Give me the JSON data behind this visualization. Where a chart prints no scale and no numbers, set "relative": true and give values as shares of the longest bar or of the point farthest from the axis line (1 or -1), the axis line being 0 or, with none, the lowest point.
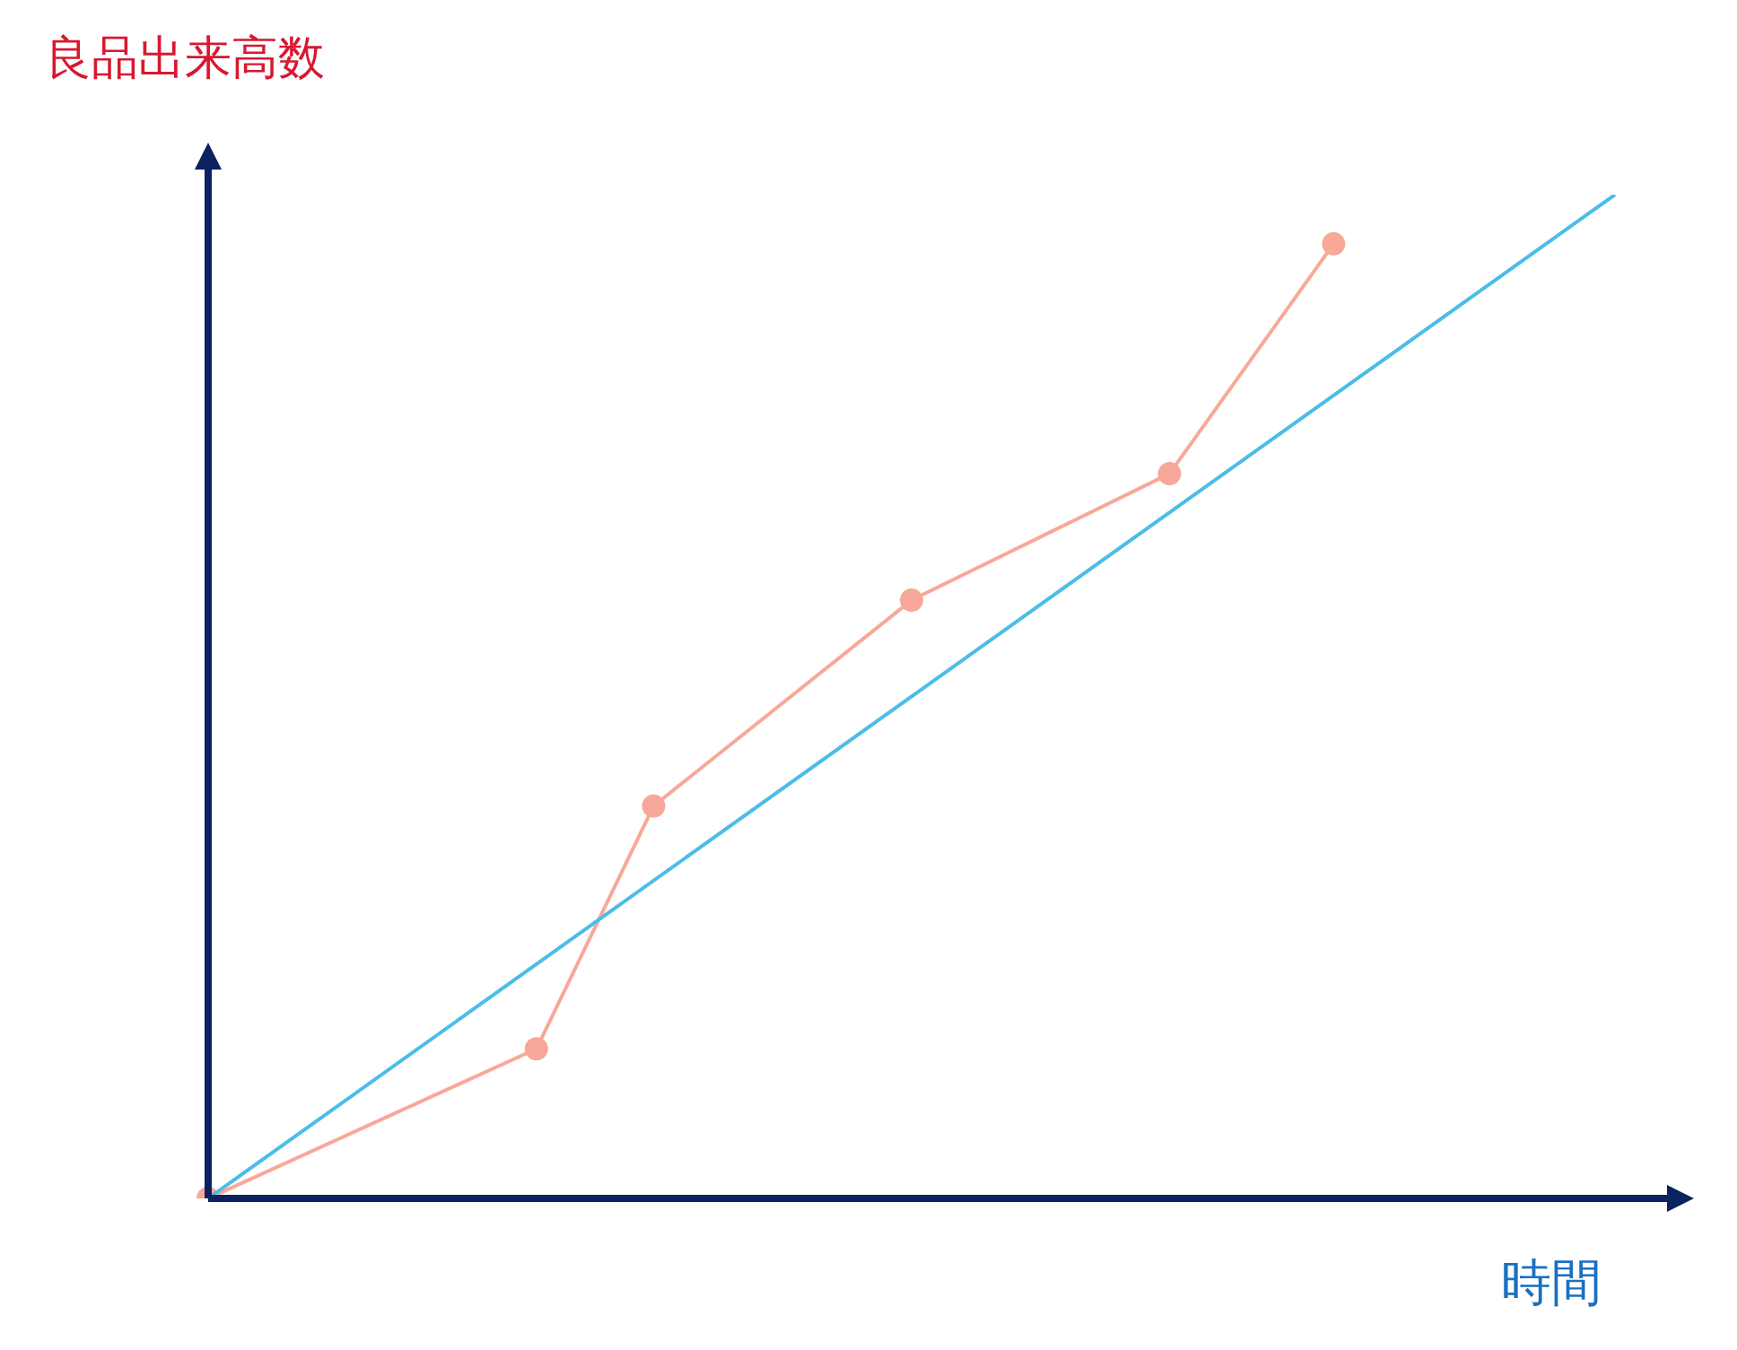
{
  "chart_data": {
    "type": "line",
    "relative": true,
    "xlabel": "時間",
    "ylabel": "良品出来高数",
    "legend": false,
    "line_style": "solid",
    "categories": [
      null,
      null,
      null,
      null,
      null,
      null,
      null,
      null,
      null,
      null,
      null,
      null,
      null,
      null,
      null,
      null,
      null,
      null,
      null,
      null,
      null,
      null,
      null,
      null,
      null,
      null,
      null,
      null,
      null,
      null,
      null,
      null,
      null,
      null,
      null,
      null,
      null,
      null,
      null,
      null,
      null,
      null,
      null,
      null,
      null,
      null,
      null,
      null,
      null,
      null,
      null,
      null,
      null,
      null,
      null,
      null,
      null,
      null,
      null,
      null,
      null
    ],
    "series": [
      {
        "color": "#4bbde8",
        "marker": "none",
        "values": [
          0,
          null,
          null,
          null,
          null,
          null,
          null,
          null,
          null,
          null,
          null,
          null,
          null,
          null,
          null,
          null,
          null,
          null,
          null,
          null,
          null,
          null,
          null,
          null,
          null,
          null,
          null,
          null,
          null,
          null,
          null,
          null,
          null,
          null,
          null,
          null,
          null,
          null,
          null,
          null,
          null,
          null,
          null,
          null,
          null,
          null,
          null,
          null,
          null,
          null,
          null,
          null,
          null,
          null,
          null,
          null,
          null,
          null,
          null,
          null,
          1
        ]
      },
      {
        "color": "#f8a898",
        "marker": "circle",
        "values": [
          0,
          null,
          null,
          null,
          null,
          null,
          null,
          null,
          null,
          null,
          null,
          null,
          null,
          null,
          0.149,
          null,
          null,
          null,
          null,
          0.391,
          null,
          null,
          null,
          null,
          null,
          null,
          null,
          null,
          null,
          null,
          0.596,
          null,
          null,
          null,
          null,
          null,
          null,
          null,
          null,
          null,
          null,
          0.722,
          null,
          null,
          null,
          null,
          null,
          null,
          0.951,
          null,
          null,
          null,
          null,
          null,
          null,
          null,
          null,
          null,
          null,
          null,
          null
        ]
      }
    ]
  }
}
